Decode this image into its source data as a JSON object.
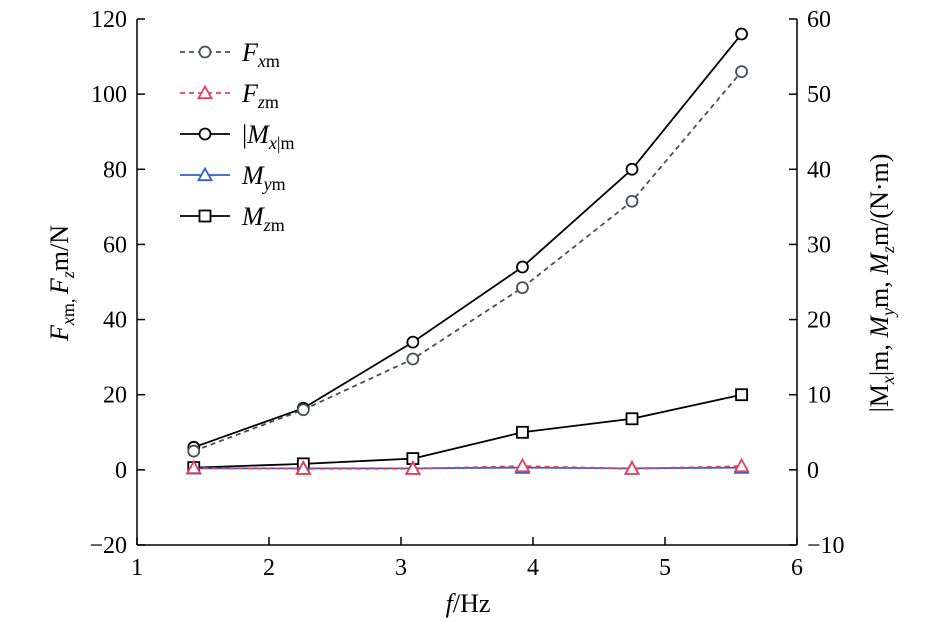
{
  "chart_data": {
    "type": "line",
    "x": [
      1.43,
      2.26,
      3.09,
      3.92,
      4.75,
      5.58
    ],
    "x_axis": {
      "label_var": "f",
      "label_unit": "/Hz",
      "range": [
        1,
        6
      ],
      "ticks": [
        "1",
        "2",
        "3",
        "4",
        "5",
        "6"
      ]
    },
    "y_left": {
      "label": {
        "p1": "F",
        "s1": "x",
        "p2": "m, ",
        "p3": "F",
        "s2": "z",
        "p4": "m/N"
      },
      "range": [
        -20,
        120
      ],
      "ticks": [
        "−20",
        "0",
        "20",
        "40",
        "60",
        "80",
        "100",
        "120"
      ]
    },
    "y_right": {
      "label": {
        "p1": "|M",
        "s1": "x",
        "p2": "|m, ",
        "p3": "M",
        "s2": "y",
        "p4": "m, ",
        "p5": "M",
        "s3": "z",
        "p6": "m/(N·m)"
      },
      "range": [
        -10,
        60
      ],
      "ticks": [
        "−10",
        "0",
        "10",
        "20",
        "30",
        "40",
        "50",
        "60"
      ]
    },
    "series": [
      {
        "name_main": "F",
        "name_sub": "x",
        "name_tail": "m",
        "axis": "left",
        "marker": "circle",
        "dash": true,
        "color": "#4a4f57",
        "values": [
          5,
          16,
          29.5,
          48.5,
          71.5,
          106
        ]
      },
      {
        "name_main": "F",
        "name_sub": "z",
        "name_tail": "m",
        "axis": "left",
        "marker": "triangle",
        "dash": true,
        "color": "#e0405a",
        "values": [
          0.5,
          0.3,
          0.3,
          1.0,
          0.3,
          1.0
        ]
      },
      {
        "name_main": "|M",
        "name_sub": "x",
        "name_tail": "|m",
        "axis": "right",
        "marker": "circle",
        "dash": false,
        "color": "#000000",
        "values": [
          3,
          8.2,
          17,
          27,
          40,
          58
        ]
      },
      {
        "name_main": "M",
        "name_sub": "y",
        "name_tail": "m",
        "axis": "right",
        "marker": "triangle",
        "dash": false,
        "color": "#2f5ed8",
        "values": [
          0.2,
          0.2,
          0.2,
          0.3,
          0.2,
          0.3
        ]
      },
      {
        "name_main": "M",
        "name_sub": "z",
        "name_tail": "m",
        "axis": "right",
        "marker": "square",
        "dash": false,
        "color": "#000000",
        "values": [
          0.3,
          0.8,
          1.5,
          5,
          6.8,
          10
        ]
      }
    ],
    "legend_position": "top-left",
    "grid": false
  }
}
